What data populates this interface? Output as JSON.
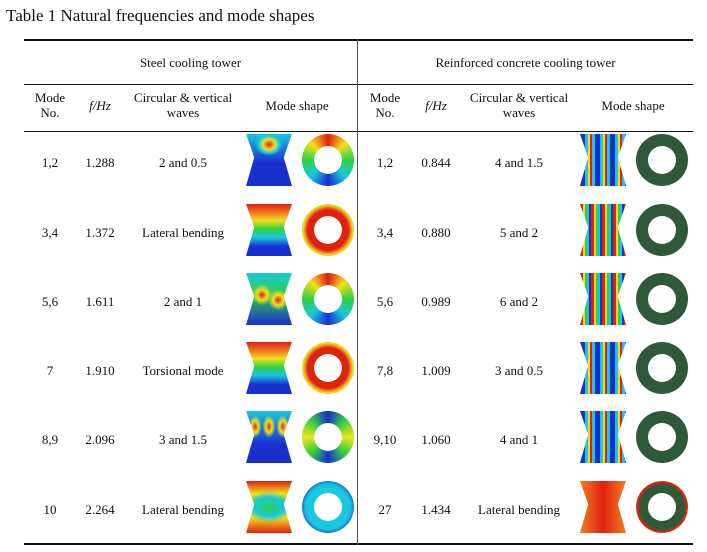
{
  "caption": "Table 1 Natural frequencies and mode shapes",
  "groups": {
    "steel": "Steel cooling tower",
    "concrete": "Reinforced concrete cooling tower"
  },
  "headers": {
    "mode_no": "Mode No.",
    "freq": "f/Hz",
    "waves": "Circular & vertical waves",
    "shape": "Mode shape"
  },
  "steel_rows": [
    {
      "mode": "1,2",
      "freq": "1.288",
      "waves": "2 and 0.5",
      "tower": "wave-low",
      "ring": "oval"
    },
    {
      "mode": "3,4",
      "freq": "1.372",
      "waves": "Lateral bending",
      "tower": "bands",
      "ring": "round"
    },
    {
      "mode": "5,6",
      "freq": "1.611",
      "waves": "2 and 1",
      "tower": "wave-mid",
      "ring": "oval"
    },
    {
      "mode": "7",
      "freq": "1.910",
      "waves": "Torsional mode",
      "tower": "bands",
      "ring": "round"
    },
    {
      "mode": "8,9",
      "freq": "2.096",
      "waves": "3 and 1.5",
      "tower": "wave-high",
      "ring": "lobed"
    },
    {
      "mode": "10",
      "freq": "2.264",
      "waves": "Lateral bending",
      "tower": "pinch",
      "ring": "thin"
    }
  ],
  "concrete_rows": [
    {
      "mode": "1,2",
      "freq": "0.844",
      "waves": "4 and 1.5",
      "tower": "stripes",
      "ring": "lobed-dark"
    },
    {
      "mode": "3,4",
      "freq": "0.880",
      "waves": "5 and 2",
      "tower": "stripes-dense",
      "ring": "lobed-dark"
    },
    {
      "mode": "5,6",
      "freq": "0.989",
      "waves": "6 and 2",
      "tower": "stripes-dense",
      "ring": "lobed-dark"
    },
    {
      "mode": "7,8",
      "freq": "1.009",
      "waves": "3 and 0.5",
      "tower": "stripes",
      "ring": "lobed-dark"
    },
    {
      "mode": "9,10",
      "freq": "1.060",
      "waves": "4 and 1",
      "tower": "stripes",
      "ring": "lobed-dark"
    },
    {
      "mode": "27",
      "freq": "1.434",
      "waves": "Lateral bending",
      "tower": "warm",
      "ring": "warm"
    }
  ],
  "colors": {
    "blue": "#1a2fd0",
    "cyan": "#18c8e0",
    "green": "#30d040",
    "yellow": "#f0e020",
    "orange": "#f08020",
    "red": "#e02010",
    "dark_green": "#2f5a3a"
  }
}
